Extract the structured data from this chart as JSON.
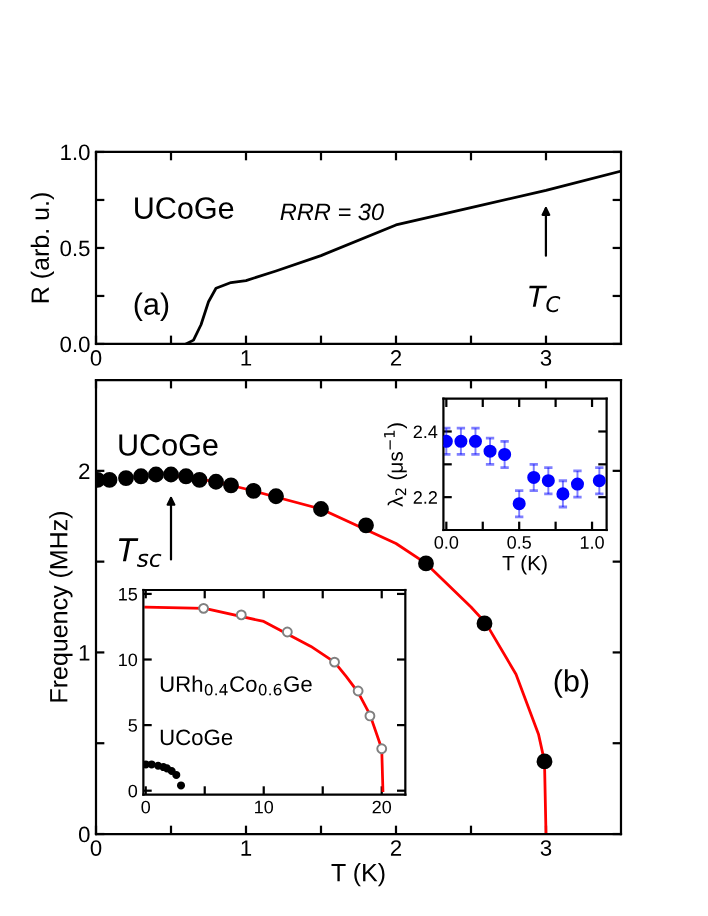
{
  "chart_data": [
    {
      "type": "line",
      "ylabel": "R (arb. u.)",
      "xlim": [
        0,
        3.5
      ],
      "ylim": [
        0,
        1.0
      ],
      "xticks": [
        0,
        {
          "value": 0.5,
          "label": null
        },
        1,
        {
          "value": 1.5,
          "label": null
        },
        2,
        {
          "value": 2.5,
          "label": null
        },
        3
      ],
      "yticks": [
        {
          "value": 0,
          "label": "0.0"
        },
        {
          "value": 0.25,
          "label": null
        },
        0.5,
        {
          "value": 0.75,
          "label": null
        },
        {
          "value": 1,
          "label": "1.0"
        }
      ],
      "series": [
        {
          "color": "#000000",
          "x": [
            0.6,
            0.65,
            0.7,
            0.75,
            0.8,
            0.9,
            1.0,
            1.2,
            1.5,
            2.0,
            2.5,
            3.0,
            3.5
          ],
          "values": [
            0,
            0.02,
            0.1,
            0.22,
            0.29,
            0.32,
            0.33,
            0.38,
            0.46,
            0.62,
            0.71,
            0.8,
            0.9
          ]
        }
      ],
      "marker": "none",
      "line_style": "solid",
      "grid": false,
      "annotations": [
        "UCoGe",
        "RRR = 30",
        "(a)",
        "T$_{C}$"
      ]
    },
    {
      "type": "scatter",
      "xlabel": "T (K)",
      "ylabel": "Frequency (MHz)",
      "xlim": [
        0,
        3.5
      ],
      "ylim": [
        0,
        2.5
      ],
      "xticks": [
        0,
        {
          "value": 0.5,
          "label": null
        },
        1,
        {
          "value": 1.5,
          "label": null
        },
        2,
        {
          "value": 2.5,
          "label": null
        },
        3
      ],
      "yticks": [
        0,
        {
          "value": 0.5,
          "label": null
        },
        1,
        {
          "value": 1.5,
          "label": null
        },
        2
      ],
      "series": [
        {
          "type": "scatter",
          "marker": "circle",
          "color": "#000000",
          "x": [
            0.01,
            0.09,
            0.2,
            0.3,
            0.4,
            0.5,
            0.6,
            0.69,
            0.8,
            0.9,
            1.05,
            1.2,
            1.5,
            1.8,
            2.2,
            2.59,
            2.99
          ],
          "values": [
            1.95,
            1.95,
            1.96,
            1.97,
            1.98,
            1.98,
            1.97,
            1.95,
            1.94,
            1.92,
            1.89,
            1.86,
            1.79,
            1.7,
            1.49,
            1.16,
            0.4
          ]
        },
        {
          "type": "line",
          "marker": "none",
          "color": "#ff0000",
          "x": [
            0.55,
            0.8,
            1.0,
            1.5,
            2.0,
            2.2,
            2.5,
            2.6,
            2.8,
            2.95,
            2.99,
            3.0
          ],
          "values": [
            1.97,
            1.94,
            1.9,
            1.79,
            1.6,
            1.49,
            1.25,
            1.16,
            0.88,
            0.55,
            0.4,
            0.0
          ]
        }
      ],
      "grid": false,
      "annotations": [
        "UCoGe",
        "(b)",
        {
          "text": "T$_{sc}$",
          "x": 0.5,
          "y": 1.91
        }
      ]
    },
    {
      "type": "scatter",
      "xlabel": "T (K)",
      "ylabel": "λ$_{2}$ (μs$^{−1}$)",
      "xlim": [
        -0.02,
        1.1
      ],
      "ylim": [
        2.1,
        2.5
      ],
      "xticks": [
        {
          "value": 0,
          "label": "0.0"
        },
        {
          "value": 0.25,
          "label": null
        },
        0.5,
        {
          "value": 0.75,
          "label": null
        },
        {
          "value": 1,
          "label": "1.0"
        }
      ],
      "yticks": [
        2.2,
        {
          "value": 2.3,
          "label": null
        },
        2.4
      ],
      "series": [
        {
          "color": "#0000ff",
          "x": [
            0.0,
            0.1,
            0.2,
            0.3,
            0.4,
            0.5,
            0.6,
            0.7,
            0.8,
            0.9,
            1.05
          ],
          "values": [
            2.37,
            2.37,
            2.37,
            2.34,
            2.33,
            2.18,
            2.26,
            2.25,
            2.21,
            2.24,
            2.25
          ],
          "errors": [
            0.04,
            0.04,
            0.04,
            0.04,
            0.04,
            0.04,
            0.04,
            0.04,
            0.04,
            0.04,
            0.04
          ]
        }
      ],
      "marker": "circle",
      "grid": false
    },
    {
      "type": "scatter",
      "xlim": [
        -0.2,
        22
      ],
      "ylim": [
        -0.3,
        15.3
      ],
      "xticks": [
        0,
        {
          "value": 5,
          "label": null
        },
        10,
        {
          "value": 15,
          "label": null
        },
        20
      ],
      "yticks": [
        0,
        5,
        10,
        15
      ],
      "series": [
        {
          "type": "scatter",
          "marker": "circle",
          "color": "#808080",
          "x": [
            4.9,
            8.1,
            12.0,
            16.0,
            18.0,
            19.0,
            20.0
          ],
          "values": [
            13.9,
            13.4,
            12.1,
            9.8,
            7.6,
            5.7,
            3.2
          ]
        },
        {
          "type": "line",
          "marker": "none",
          "color": "#ff0000",
          "x": [
            0,
            5,
            10,
            14,
            16,
            17,
            18,
            19,
            20,
            20.1
          ],
          "values": [
            14.0,
            13.9,
            12.9,
            11.0,
            9.8,
            8.7,
            7.5,
            5.8,
            3.2,
            0.0
          ]
        },
        {
          "type": "scatter",
          "marker": "circle",
          "color": "#000000",
          "x": [
            0.01,
            0.5,
            1.05,
            1.5,
            1.8,
            2.2,
            2.59,
            2.99
          ],
          "values": [
            2.0,
            2.0,
            1.9,
            1.8,
            1.7,
            1.5,
            1.2,
            0.4
          ]
        }
      ],
      "grid": false,
      "annotations": [
        "URh$_{0.4}$Co$_{0.6}$Ge",
        "UCoGe"
      ]
    }
  ]
}
